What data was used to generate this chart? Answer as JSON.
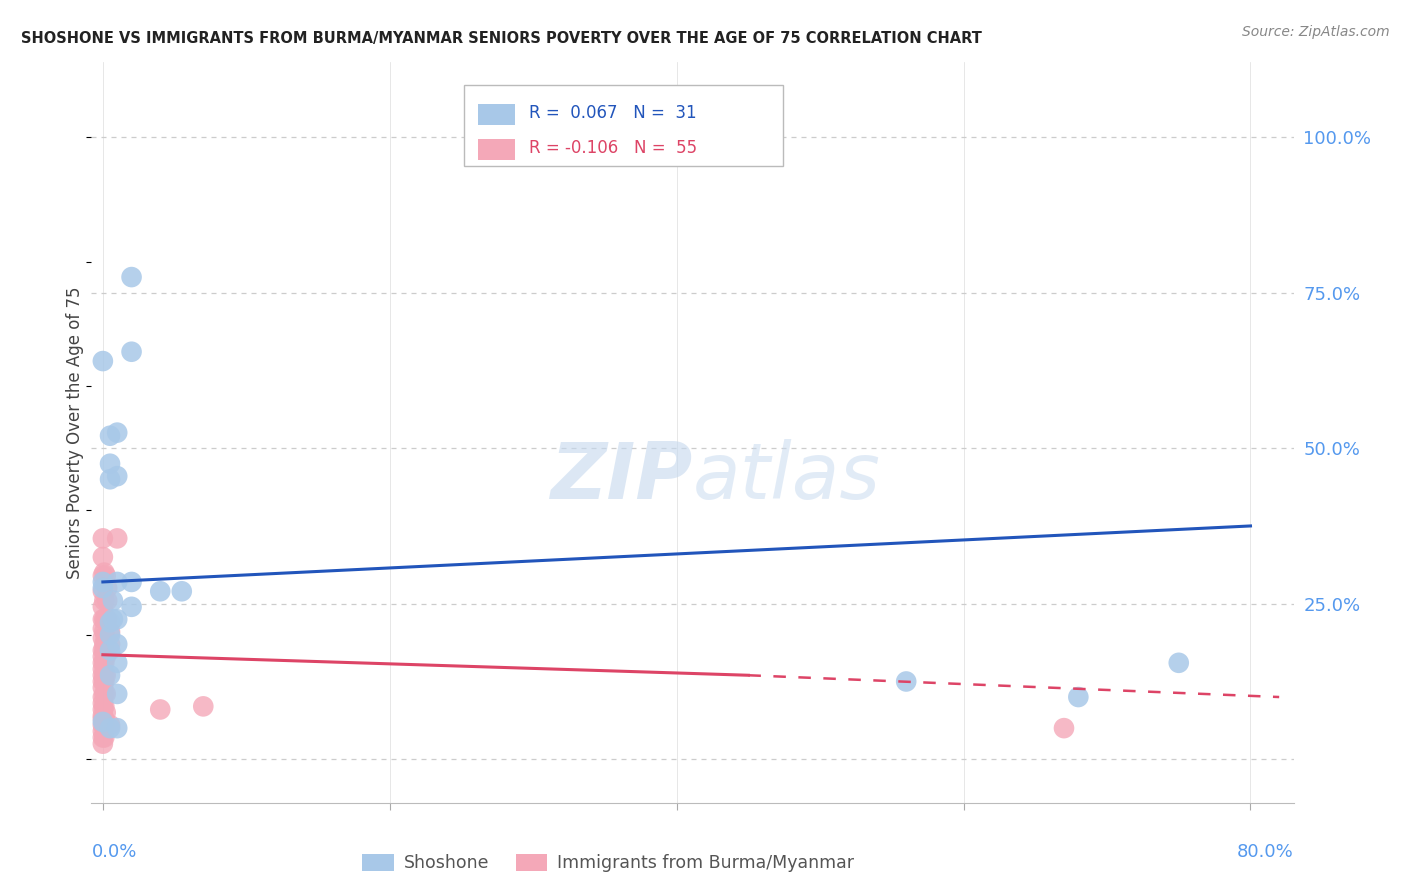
{
  "title": "SHOSHONE VS IMMIGRANTS FROM BURMA/MYANMAR SENIORS POVERTY OVER THE AGE OF 75 CORRELATION CHART",
  "source": "Source: ZipAtlas.com",
  "ylabel": "Seniors Poverty Over the Age of 75",
  "yticks": [
    0.0,
    0.25,
    0.5,
    0.75,
    1.0
  ],
  "ytick_labels": [
    "",
    "25.0%",
    "50.0%",
    "75.0%",
    "100.0%"
  ],
  "xtick_labels": [
    "0.0%",
    "",
    "",
    "",
    "80.0%"
  ],
  "xlim": [
    -0.008,
    0.83
  ],
  "ylim": [
    -0.07,
    1.12
  ],
  "watermark_zip": "ZIP",
  "watermark_atlas": "atlas",
  "color_blue": "#a8c8e8",
  "color_pink": "#f4a8b8",
  "line_blue": "#2255bb",
  "line_pink": "#dd4466",
  "shoshone_points": [
    [
      0.0,
      0.285
    ],
    [
      0.0,
      0.275
    ],
    [
      0.0,
      0.64
    ],
    [
      0.0,
      0.06
    ],
    [
      0.005,
      0.52
    ],
    [
      0.005,
      0.475
    ],
    [
      0.005,
      0.45
    ],
    [
      0.005,
      0.22
    ],
    [
      0.005,
      0.2
    ],
    [
      0.005,
      0.175
    ],
    [
      0.005,
      0.135
    ],
    [
      0.005,
      0.05
    ],
    [
      0.007,
      0.255
    ],
    [
      0.007,
      0.225
    ],
    [
      0.01,
      0.525
    ],
    [
      0.01,
      0.455
    ],
    [
      0.01,
      0.285
    ],
    [
      0.01,
      0.225
    ],
    [
      0.01,
      0.185
    ],
    [
      0.01,
      0.155
    ],
    [
      0.01,
      0.105
    ],
    [
      0.01,
      0.05
    ],
    [
      0.02,
      0.775
    ],
    [
      0.02,
      0.655
    ],
    [
      0.02,
      0.285
    ],
    [
      0.02,
      0.245
    ],
    [
      0.04,
      0.27
    ],
    [
      0.055,
      0.27
    ],
    [
      0.56,
      0.125
    ],
    [
      0.68,
      0.1
    ],
    [
      0.75,
      0.155
    ]
  ],
  "burma_points": [
    [
      0.0,
      0.355
    ],
    [
      0.0,
      0.325
    ],
    [
      0.0,
      0.295
    ],
    [
      0.0,
      0.27
    ],
    [
      0.0,
      0.245
    ],
    [
      0.0,
      0.225
    ],
    [
      0.0,
      0.21
    ],
    [
      0.0,
      0.195
    ],
    [
      0.0,
      0.175
    ],
    [
      0.0,
      0.165
    ],
    [
      0.0,
      0.155
    ],
    [
      0.0,
      0.145
    ],
    [
      0.0,
      0.135
    ],
    [
      0.0,
      0.125
    ],
    [
      0.0,
      0.115
    ],
    [
      0.0,
      0.1
    ],
    [
      0.0,
      0.09
    ],
    [
      0.0,
      0.08
    ],
    [
      0.0,
      0.07
    ],
    [
      0.0,
      0.065
    ],
    [
      0.0,
      0.055
    ],
    [
      0.0,
      0.045
    ],
    [
      0.0,
      0.035
    ],
    [
      0.0,
      0.025
    ],
    [
      0.001,
      0.3
    ],
    [
      0.001,
      0.255
    ],
    [
      0.001,
      0.225
    ],
    [
      0.001,
      0.205
    ],
    [
      0.001,
      0.185
    ],
    [
      0.001,
      0.175
    ],
    [
      0.001,
      0.155
    ],
    [
      0.001,
      0.135
    ],
    [
      0.001,
      0.125
    ],
    [
      0.001,
      0.105
    ],
    [
      0.001,
      0.085
    ],
    [
      0.001,
      0.065
    ],
    [
      0.001,
      0.055
    ],
    [
      0.001,
      0.035
    ],
    [
      0.002,
      0.295
    ],
    [
      0.002,
      0.225
    ],
    [
      0.002,
      0.195
    ],
    [
      0.002,
      0.165
    ],
    [
      0.002,
      0.135
    ],
    [
      0.002,
      0.105
    ],
    [
      0.002,
      0.075
    ],
    [
      0.003,
      0.275
    ],
    [
      0.003,
      0.255
    ],
    [
      0.003,
      0.225
    ],
    [
      0.005,
      0.205
    ],
    [
      0.005,
      0.185
    ],
    [
      0.005,
      0.055
    ],
    [
      0.01,
      0.355
    ],
    [
      0.04,
      0.08
    ],
    [
      0.07,
      0.085
    ],
    [
      0.67,
      0.05
    ]
  ],
  "blue_line": [
    [
      0.0,
      0.285
    ],
    [
      0.8,
      0.375
    ]
  ],
  "pink_line_solid": [
    [
      0.0,
      0.168
    ],
    [
      0.45,
      0.135
    ]
  ],
  "pink_line_dashed": [
    [
      0.45,
      0.135
    ],
    [
      0.82,
      0.1
    ]
  ]
}
